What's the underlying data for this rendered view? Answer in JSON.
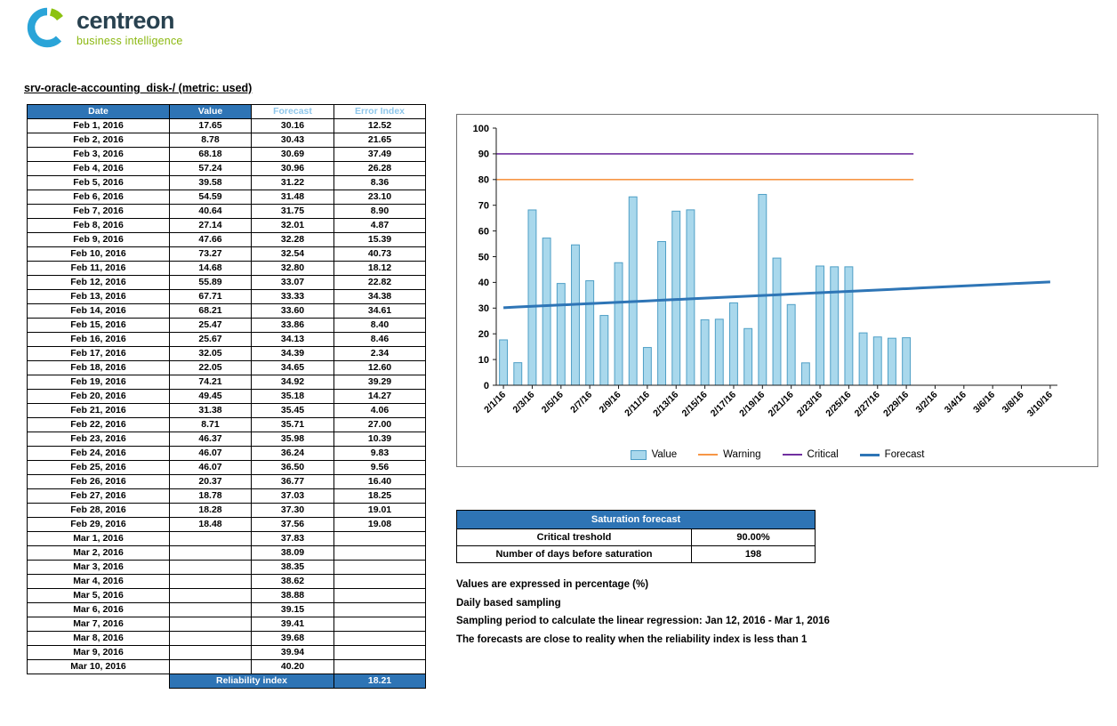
{
  "brand": {
    "name": "centreon",
    "tagline": "business intelligence"
  },
  "page": {
    "title": "srv-oracle-accounting_disk-/ (metric: used)"
  },
  "table": {
    "headers": [
      "Date",
      "Value",
      "Forecast",
      "Error Index"
    ],
    "rows": [
      [
        "Feb 1, 2016",
        "17.65",
        "30.16",
        "12.52"
      ],
      [
        "Feb 2, 2016",
        "8.78",
        "30.43",
        "21.65"
      ],
      [
        "Feb 3, 2016",
        "68.18",
        "30.69",
        "37.49"
      ],
      [
        "Feb 4, 2016",
        "57.24",
        "30.96",
        "26.28"
      ],
      [
        "Feb 5, 2016",
        "39.58",
        "31.22",
        "8.36"
      ],
      [
        "Feb 6, 2016",
        "54.59",
        "31.48",
        "23.10"
      ],
      [
        "Feb 7, 2016",
        "40.64",
        "31.75",
        "8.90"
      ],
      [
        "Feb 8, 2016",
        "27.14",
        "32.01",
        "4.87"
      ],
      [
        "Feb 9, 2016",
        "47.66",
        "32.28",
        "15.39"
      ],
      [
        "Feb 10, 2016",
        "73.27",
        "32.54",
        "40.73"
      ],
      [
        "Feb 11, 2016",
        "14.68",
        "32.80",
        "18.12"
      ],
      [
        "Feb 12, 2016",
        "55.89",
        "33.07",
        "22.82"
      ],
      [
        "Feb 13, 2016",
        "67.71",
        "33.33",
        "34.38"
      ],
      [
        "Feb 14, 2016",
        "68.21",
        "33.60",
        "34.61"
      ],
      [
        "Feb 15, 2016",
        "25.47",
        "33.86",
        "8.40"
      ],
      [
        "Feb 16, 2016",
        "25.67",
        "34.13",
        "8.46"
      ],
      [
        "Feb 17, 2016",
        "32.05",
        "34.39",
        "2.34"
      ],
      [
        "Feb 18, 2016",
        "22.05",
        "34.65",
        "12.60"
      ],
      [
        "Feb 19, 2016",
        "74.21",
        "34.92",
        "39.29"
      ],
      [
        "Feb 20, 2016",
        "49.45",
        "35.18",
        "14.27"
      ],
      [
        "Feb 21, 2016",
        "31.38",
        "35.45",
        "4.06"
      ],
      [
        "Feb 22, 2016",
        "8.71",
        "35.71",
        "27.00"
      ],
      [
        "Feb 23, 2016",
        "46.37",
        "35.98",
        "10.39"
      ],
      [
        "Feb 24, 2016",
        "46.07",
        "36.24",
        "9.83"
      ],
      [
        "Feb 25, 2016",
        "46.07",
        "36.50",
        "9.56"
      ],
      [
        "Feb 26, 2016",
        "20.37",
        "36.77",
        "16.40"
      ],
      [
        "Feb 27, 2016",
        "18.78",
        "37.03",
        "18.25"
      ],
      [
        "Feb 28, 2016",
        "18.28",
        "37.30",
        "19.01"
      ],
      [
        "Feb 29, 2016",
        "18.48",
        "37.56",
        "19.08"
      ],
      [
        "Mar 1, 2016",
        "",
        "37.83",
        ""
      ],
      [
        "Mar 2, 2016",
        "",
        "38.09",
        ""
      ],
      [
        "Mar 3, 2016",
        "",
        "38.35",
        ""
      ],
      [
        "Mar 4, 2016",
        "",
        "38.62",
        ""
      ],
      [
        "Mar 5, 2016",
        "",
        "38.88",
        ""
      ],
      [
        "Mar 6, 2016",
        "",
        "39.15",
        ""
      ],
      [
        "Mar 7, 2016",
        "",
        "39.41",
        ""
      ],
      [
        "Mar 8, 2016",
        "",
        "39.68",
        ""
      ],
      [
        "Mar 9, 2016",
        "",
        "39.94",
        ""
      ],
      [
        "Mar 10, 2016",
        "",
        "40.20",
        ""
      ]
    ],
    "footer_label": "Reliability index",
    "footer_value": "18.21"
  },
  "chart_data": {
    "type": "bar",
    "title": "",
    "ylim": [
      0,
      100
    ],
    "y_ticks": [
      0,
      10,
      20,
      30,
      40,
      50,
      60,
      70,
      80,
      90,
      100
    ],
    "n_days": 39,
    "x_tick_every": 2,
    "x_tick_labels": [
      "2/1/16",
      "2/3/16",
      "2/5/16",
      "2/7/16",
      "2/9/16",
      "2/11/16",
      "2/13/16",
      "2/15/16",
      "2/17/16",
      "2/19/16",
      "2/21/16",
      "2/23/16",
      "2/25/16",
      "2/27/16",
      "2/29/16",
      "3/2/16",
      "3/4/16",
      "3/6/16",
      "3/8/16",
      "3/10/16"
    ],
    "grid": false,
    "legend_position": "bottom",
    "series": [
      {
        "name": "Value",
        "type": "bar",
        "color": "#a9d8ec",
        "edge_color": "#4f9fc6",
        "values": [
          17.65,
          8.78,
          68.18,
          57.24,
          39.58,
          54.59,
          40.64,
          27.14,
          47.66,
          73.27,
          14.68,
          55.89,
          67.71,
          68.21,
          25.47,
          25.67,
          32.05,
          22.05,
          74.21,
          49.45,
          31.38,
          8.71,
          46.37,
          46.07,
          46.07,
          20.37,
          18.78,
          18.28,
          18.48
        ]
      },
      {
        "name": "Warning",
        "type": "hline",
        "color": "#f79646",
        "value": 80,
        "span": [
          0,
          29
        ]
      },
      {
        "name": "Critical",
        "type": "hline",
        "color": "#7030a0",
        "value": 90,
        "span": [
          0,
          29
        ]
      },
      {
        "name": "Forecast",
        "type": "line",
        "color": "#2e75b6",
        "line_width": 3,
        "values": [
          30.16,
          30.43,
          30.69,
          30.96,
          31.22,
          31.48,
          31.75,
          32.01,
          32.28,
          32.54,
          32.8,
          33.07,
          33.33,
          33.6,
          33.86,
          34.13,
          34.39,
          34.65,
          34.92,
          35.18,
          35.45,
          35.71,
          35.98,
          36.24,
          36.5,
          36.77,
          37.03,
          37.3,
          37.56,
          37.83,
          38.09,
          38.35,
          38.62,
          38.88,
          39.15,
          39.41,
          39.68,
          39.94,
          40.2
        ]
      }
    ]
  },
  "saturation": {
    "title": "Saturation forecast",
    "rows": [
      {
        "label": "Critical treshold",
        "value": "90.00%"
      },
      {
        "label": "Number of days before saturation",
        "value": "198"
      }
    ]
  },
  "notes": [
    "Values are expressed in percentage (%)",
    "Daily based sampling",
    "Sampling period to calculate the linear regression: Jan 12, 2016 - Mar 1, 2016",
    "The forecasts are close to reality when the reliability index is less than 1"
  ],
  "colors": {
    "header_blue": "#2e74b5",
    "header_light_text": "#8ec6ea",
    "bar_fill": "#a9d8ec",
    "bar_edge": "#4f9fc6",
    "warning": "#f79646",
    "critical": "#7030a0",
    "forecast": "#2e75b6",
    "brand_green": "#8cb811",
    "brand_dark": "#28414f"
  }
}
